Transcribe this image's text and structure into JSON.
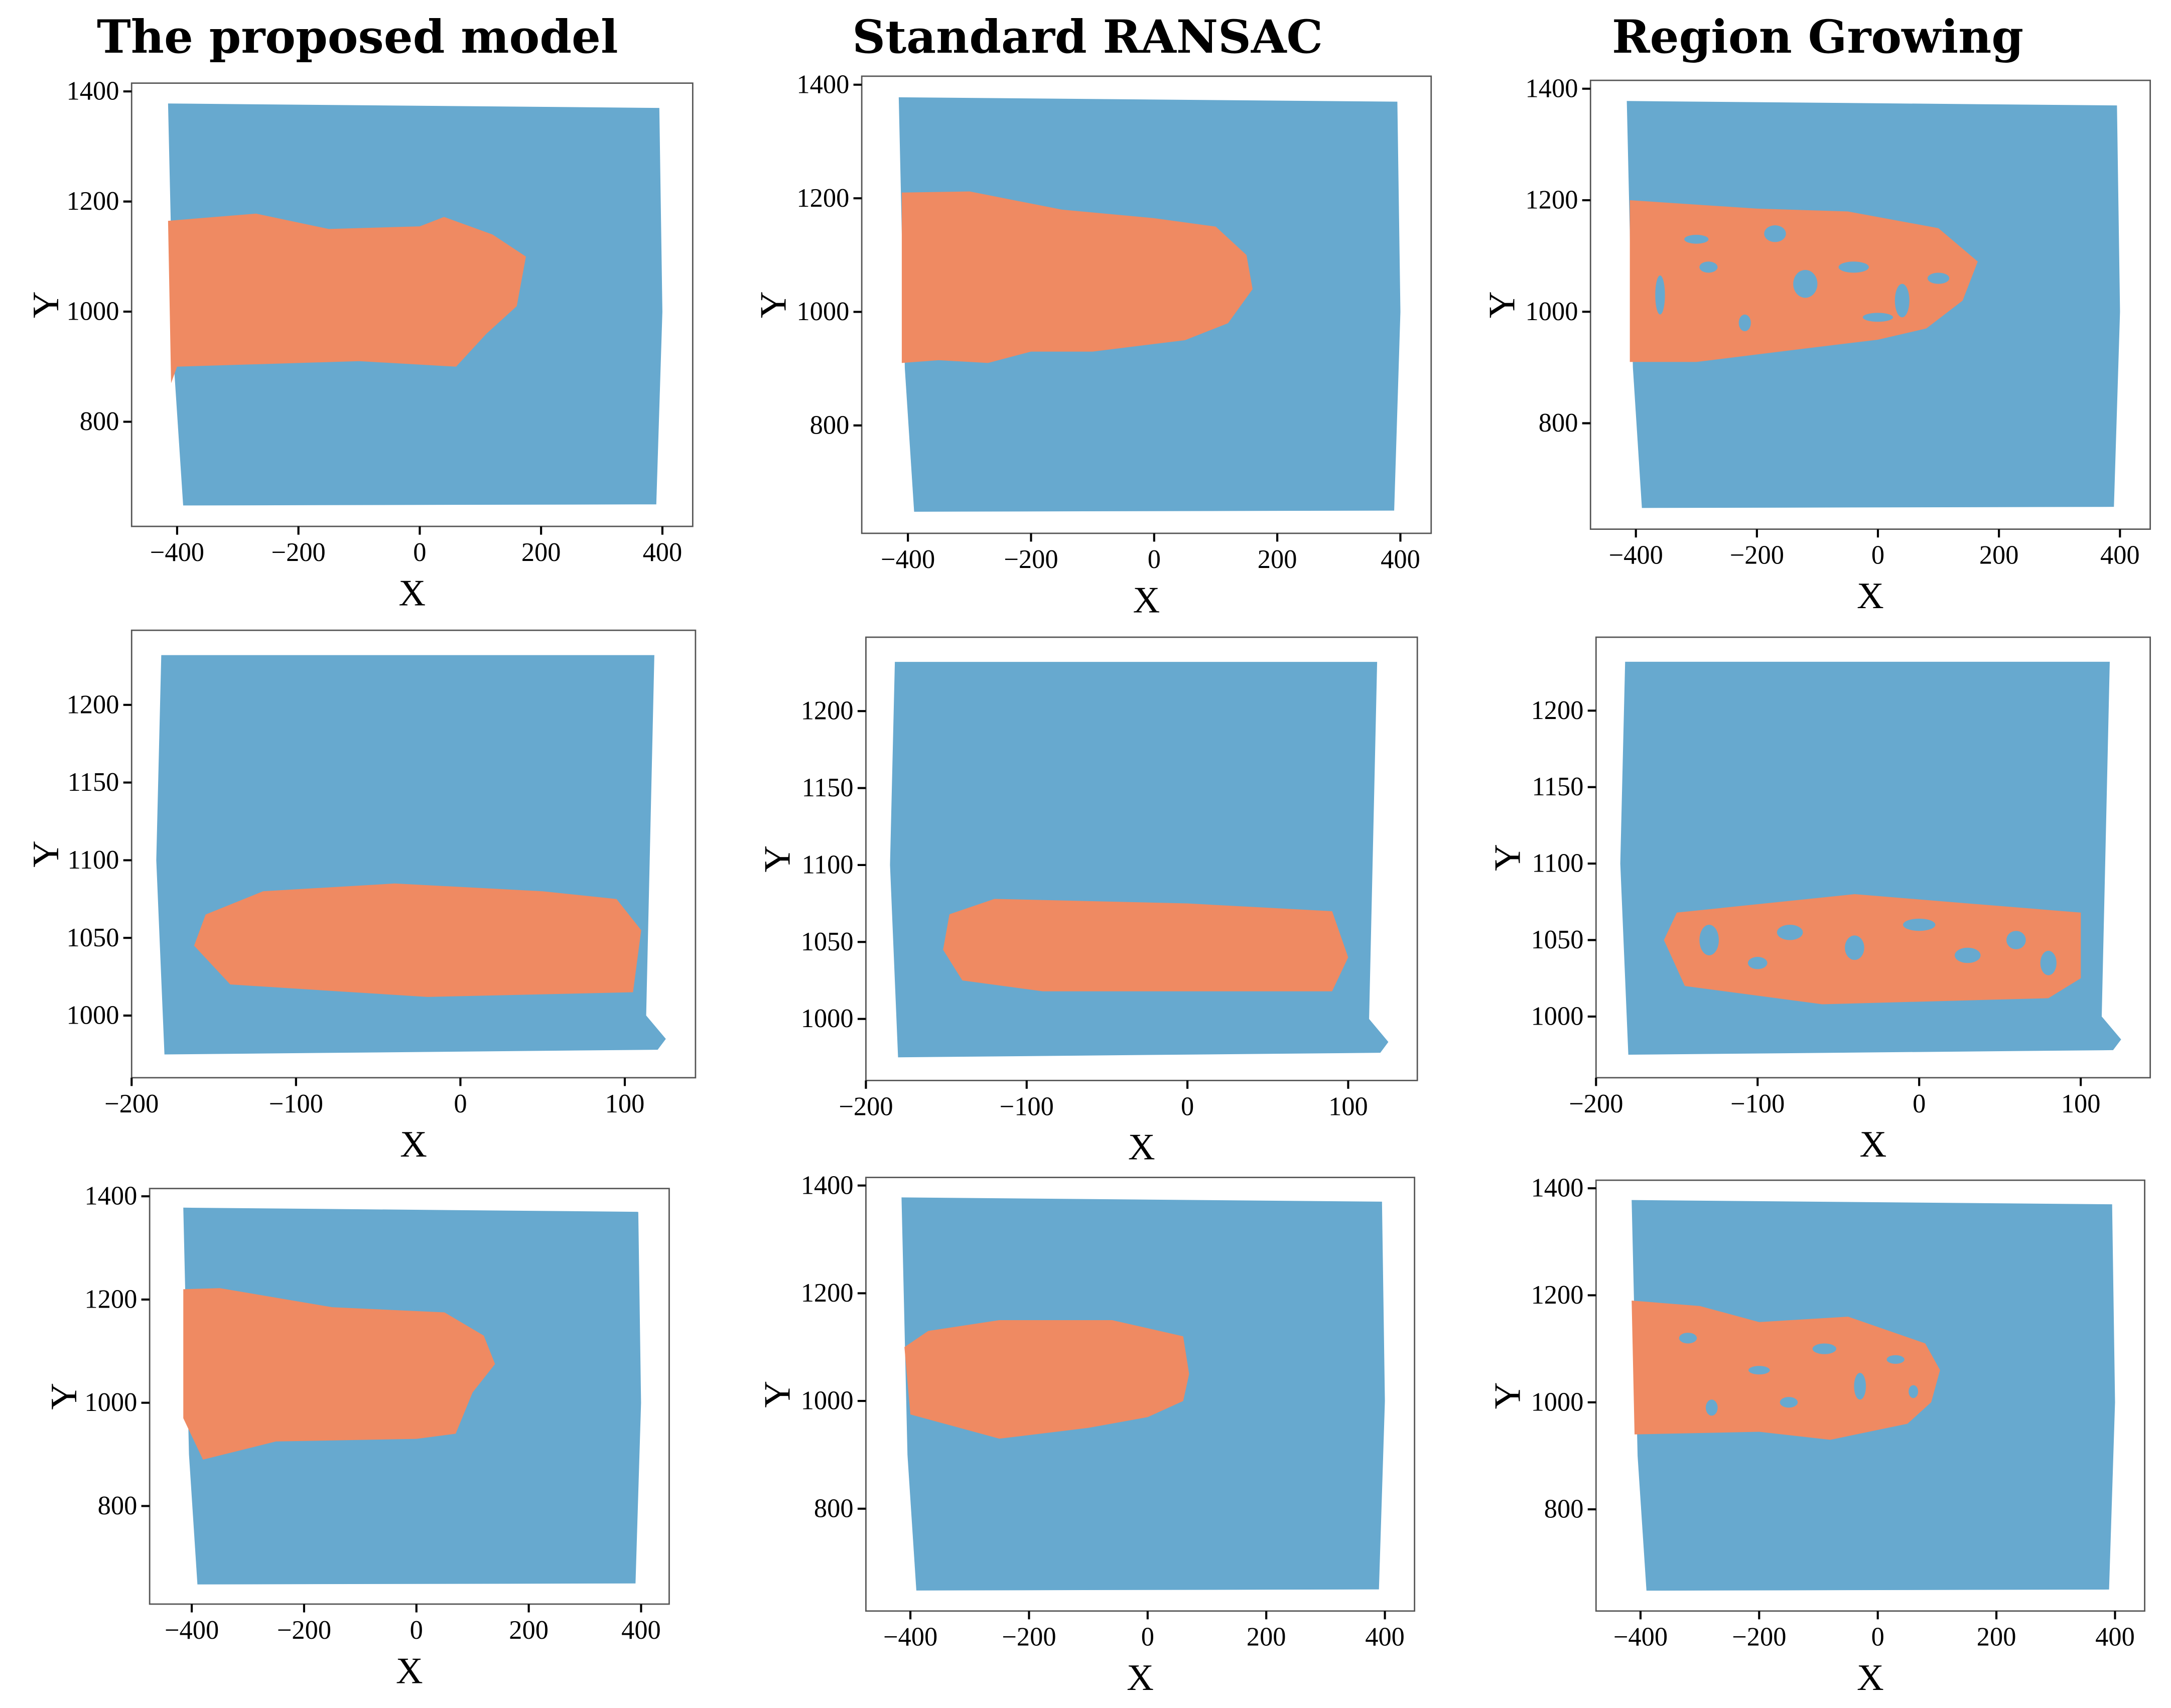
{
  "colors": {
    "background_points": "#67a9cf",
    "plane_points": "#ef8a62",
    "frame": "#555555"
  },
  "titles": [
    "The proposed model",
    "Standard RANSAC",
    "Region Growing"
  ],
  "chart_data": [
    {
      "type": "scatter",
      "row": 1,
      "method": "The proposed model",
      "xlabel": "X",
      "ylabel": "Y",
      "xlim": [
        -475,
        450
      ],
      "ylim": [
        610,
        1415
      ],
      "xticks": [
        -400,
        -200,
        0,
        200,
        400
      ],
      "yticks": [
        800,
        1000,
        1200,
        1400
      ],
      "background": [
        [
          -415,
          1378
        ],
        [
          395,
          1370
        ],
        [
          400,
          1000
        ],
        [
          390,
          650
        ],
        [
          -390,
          648
        ],
        [
          -405,
          900
        ]
      ],
      "plane": [
        [
          -415,
          1165
        ],
        [
          -270,
          1178
        ],
        [
          -150,
          1150
        ],
        [
          0,
          1155
        ],
        [
          40,
          1172
        ],
        [
          120,
          1140
        ],
        [
          175,
          1100
        ],
        [
          160,
          1010
        ],
        [
          110,
          960
        ],
        [
          60,
          900
        ],
        [
          -100,
          910
        ],
        [
          -400,
          900
        ],
        [
          -410,
          870
        ]
      ],
      "holes": []
    },
    {
      "type": "scatter",
      "row": 1,
      "method": "Standard RANSAC",
      "xlabel": "X",
      "ylabel": "Y",
      "xlim": [
        -475,
        450
      ],
      "ylim": [
        610,
        1415
      ],
      "xticks": [
        -400,
        -200,
        0,
        200,
        400
      ],
      "yticks": [
        800,
        1000,
        1200,
        1400
      ],
      "background": [
        [
          -415,
          1378
        ],
        [
          395,
          1370
        ],
        [
          400,
          1000
        ],
        [
          390,
          650
        ],
        [
          -390,
          648
        ],
        [
          -405,
          900
        ]
      ],
      "plane": [
        [
          -410,
          1210
        ],
        [
          -300,
          1212
        ],
        [
          -150,
          1180
        ],
        [
          0,
          1165
        ],
        [
          100,
          1150
        ],
        [
          150,
          1100
        ],
        [
          160,
          1040
        ],
        [
          120,
          980
        ],
        [
          50,
          950
        ],
        [
          -100,
          930
        ],
        [
          -200,
          930
        ],
        [
          -270,
          910
        ],
        [
          -350,
          915
        ],
        [
          -410,
          910
        ]
      ],
      "holes": []
    },
    {
      "type": "scatter",
      "row": 1,
      "method": "Region Growing",
      "xlabel": "X",
      "ylabel": "Y",
      "xlim": [
        -475,
        450
      ],
      "ylim": [
        610,
        1415
      ],
      "xticks": [
        -400,
        -200,
        0,
        200,
        400
      ],
      "yticks": [
        800,
        1000,
        1200,
        1400
      ],
      "background": [
        [
          -415,
          1378
        ],
        [
          395,
          1370
        ],
        [
          400,
          1000
        ],
        [
          390,
          650
        ],
        [
          -390,
          648
        ],
        [
          -405,
          900
        ]
      ],
      "plane": [
        [
          -410,
          1200
        ],
        [
          -200,
          1185
        ],
        [
          -50,
          1180
        ],
        [
          100,
          1150
        ],
        [
          165,
          1090
        ],
        [
          140,
          1020
        ],
        [
          80,
          970
        ],
        [
          0,
          950
        ],
        [
          -150,
          930
        ],
        [
          -300,
          910
        ],
        [
          -410,
          910
        ]
      ],
      "holes": [
        [
          -300,
          1130,
          20,
          8
        ],
        [
          -170,
          1140,
          18,
          15
        ],
        [
          -360,
          1030,
          8,
          35
        ],
        [
          -120,
          1050,
          20,
          25
        ],
        [
          -40,
          1080,
          25,
          10
        ],
        [
          40,
          1020,
          12,
          30
        ],
        [
          100,
          1060,
          18,
          10
        ],
        [
          -220,
          980,
          10,
          15
        ],
        [
          0,
          990,
          25,
          8
        ],
        [
          -280,
          1080,
          15,
          10
        ]
      ]
    },
    {
      "type": "scatter",
      "row": 2,
      "method": "The proposed model",
      "xlabel": "X",
      "ylabel": "Y",
      "xlim": [
        -200,
        143
      ],
      "ylim": [
        960,
        1248
      ],
      "xticks": [
        -200,
        -100,
        0,
        100
      ],
      "yticks": [
        1000,
        1050,
        1100,
        1150,
        1200
      ],
      "background": [
        [
          -182,
          1232
        ],
        [
          118,
          1232
        ],
        [
          113,
          1000
        ],
        [
          125,
          985
        ],
        [
          120,
          978
        ],
        [
          -180,
          975
        ],
        [
          -185,
          1100
        ]
      ],
      "plane": [
        [
          -155,
          1065
        ],
        [
          -120,
          1080
        ],
        [
          -40,
          1085
        ],
        [
          50,
          1080
        ],
        [
          95,
          1075
        ],
        [
          110,
          1055
        ],
        [
          105,
          1015
        ],
        [
          -20,
          1012
        ],
        [
          -140,
          1020
        ],
        [
          -162,
          1045
        ]
      ],
      "holes": []
    },
    {
      "type": "scatter",
      "row": 2,
      "method": "Standard RANSAC",
      "xlabel": "X",
      "ylabel": "Y",
      "xlim": [
        -200,
        143
      ],
      "ylim": [
        960,
        1248
      ],
      "xticks": [
        -200,
        -100,
        0,
        100
      ],
      "yticks": [
        1000,
        1050,
        1100,
        1150,
        1200
      ],
      "background": [
        [
          -182,
          1232
        ],
        [
          118,
          1232
        ],
        [
          113,
          1000
        ],
        [
          125,
          985
        ],
        [
          120,
          978
        ],
        [
          -180,
          975
        ],
        [
          -185,
          1100
        ]
      ],
      "plane": [
        [
          -148,
          1068
        ],
        [
          -120,
          1078
        ],
        [
          0,
          1075
        ],
        [
          90,
          1070
        ],
        [
          100,
          1040
        ],
        [
          90,
          1018
        ],
        [
          -90,
          1018
        ],
        [
          -140,
          1025
        ],
        [
          -152,
          1045
        ]
      ],
      "holes": []
    },
    {
      "type": "scatter",
      "row": 2,
      "method": "Region Growing",
      "xlabel": "X",
      "ylabel": "Y",
      "xlim": [
        -200,
        143
      ],
      "ylim": [
        960,
        1248
      ],
      "xticks": [
        -200,
        -100,
        0,
        100
      ],
      "yticks": [
        1000,
        1050,
        1100,
        1150,
        1200
      ],
      "background": [
        [
          -182,
          1232
        ],
        [
          118,
          1232
        ],
        [
          113,
          1000
        ],
        [
          125,
          985
        ],
        [
          120,
          978
        ],
        [
          -180,
          975
        ],
        [
          -185,
          1100
        ]
      ],
      "plane": [
        [
          -150,
          1068
        ],
        [
          -40,
          1080
        ],
        [
          100,
          1068
        ],
        [
          100,
          1025
        ],
        [
          80,
          1012
        ],
        [
          -60,
          1008
        ],
        [
          -145,
          1020
        ],
        [
          -158,
          1050
        ]
      ],
      "holes": [
        [
          -130,
          1050,
          6,
          10
        ],
        [
          -80,
          1055,
          8,
          5
        ],
        [
          -40,
          1045,
          6,
          8
        ],
        [
          0,
          1060,
          10,
          4
        ],
        [
          30,
          1040,
          8,
          5
        ],
        [
          60,
          1050,
          6,
          6
        ],
        [
          80,
          1035,
          5,
          8
        ],
        [
          -100,
          1035,
          6,
          4
        ]
      ]
    },
    {
      "type": "scatter",
      "row": 3,
      "method": "The proposed model",
      "xlabel": "X",
      "ylabel": "Y",
      "xlim": [
        -475,
        450
      ],
      "ylim": [
        610,
        1415
      ],
      "xticks": [
        -400,
        -200,
        0,
        200,
        400
      ],
      "yticks": [
        800,
        1000,
        1200,
        1400
      ],
      "background": [
        [
          -415,
          1378
        ],
        [
          395,
          1370
        ],
        [
          400,
          1000
        ],
        [
          390,
          650
        ],
        [
          -390,
          648
        ],
        [
          -405,
          900
        ]
      ],
      "plane": [
        [
          -415,
          1220
        ],
        [
          -350,
          1222
        ],
        [
          -150,
          1185
        ],
        [
          50,
          1175
        ],
        [
          120,
          1130
        ],
        [
          140,
          1075
        ],
        [
          100,
          1020
        ],
        [
          70,
          940
        ],
        [
          0,
          930
        ],
        [
          -250,
          925
        ],
        [
          -380,
          890
        ],
        [
          -415,
          970
        ]
      ],
      "holes": []
    },
    {
      "type": "scatter",
      "row": 3,
      "method": "Standard RANSAC",
      "xlabel": "X",
      "ylabel": "Y",
      "xlim": [
        -475,
        450
      ],
      "ylim": [
        610,
        1415
      ],
      "xticks": [
        -400,
        -200,
        0,
        200,
        400
      ],
      "yticks": [
        800,
        1000,
        1200,
        1400
      ],
      "background": [
        [
          -415,
          1378
        ],
        [
          395,
          1370
        ],
        [
          400,
          1000
        ],
        [
          390,
          650
        ],
        [
          -390,
          648
        ],
        [
          -405,
          900
        ]
      ],
      "plane": [
        [
          -410,
          1100
        ],
        [
          -370,
          1130
        ],
        [
          -250,
          1150
        ],
        [
          -60,
          1150
        ],
        [
          60,
          1120
        ],
        [
          70,
          1050
        ],
        [
          60,
          1000
        ],
        [
          0,
          970
        ],
        [
          -100,
          950
        ],
        [
          -250,
          930
        ],
        [
          -400,
          975
        ]
      ],
      "holes": []
    },
    {
      "type": "scatter",
      "row": 3,
      "method": "Region Growing",
      "xlabel": "X",
      "ylabel": "Y",
      "xlim": [
        -475,
        450
      ],
      "ylim": [
        610,
        1415
      ],
      "xticks": [
        -400,
        -200,
        0,
        200,
        400
      ],
      "yticks": [
        800,
        1000,
        1200,
        1400
      ],
      "background": [
        [
          -415,
          1378
        ],
        [
          395,
          1370
        ],
        [
          400,
          1000
        ],
        [
          390,
          650
        ],
        [
          -390,
          648
        ],
        [
          -405,
          900
        ]
      ],
      "plane": [
        [
          -415,
          1190
        ],
        [
          -300,
          1180
        ],
        [
          -200,
          1150
        ],
        [
          -50,
          1160
        ],
        [
          80,
          1110
        ],
        [
          105,
          1060
        ],
        [
          90,
          1000
        ],
        [
          50,
          960
        ],
        [
          -80,
          930
        ],
        [
          -200,
          945
        ],
        [
          -410,
          940
        ]
      ],
      "holes": [
        [
          -320,
          1120,
          15,
          10
        ],
        [
          -200,
          1060,
          18,
          8
        ],
        [
          -90,
          1100,
          20,
          10
        ],
        [
          -30,
          1030,
          10,
          25
        ],
        [
          -150,
          1000,
          15,
          10
        ],
        [
          30,
          1080,
          15,
          8
        ],
        [
          -280,
          990,
          10,
          15
        ],
        [
          60,
          1020,
          8,
          12
        ]
      ]
    }
  ]
}
